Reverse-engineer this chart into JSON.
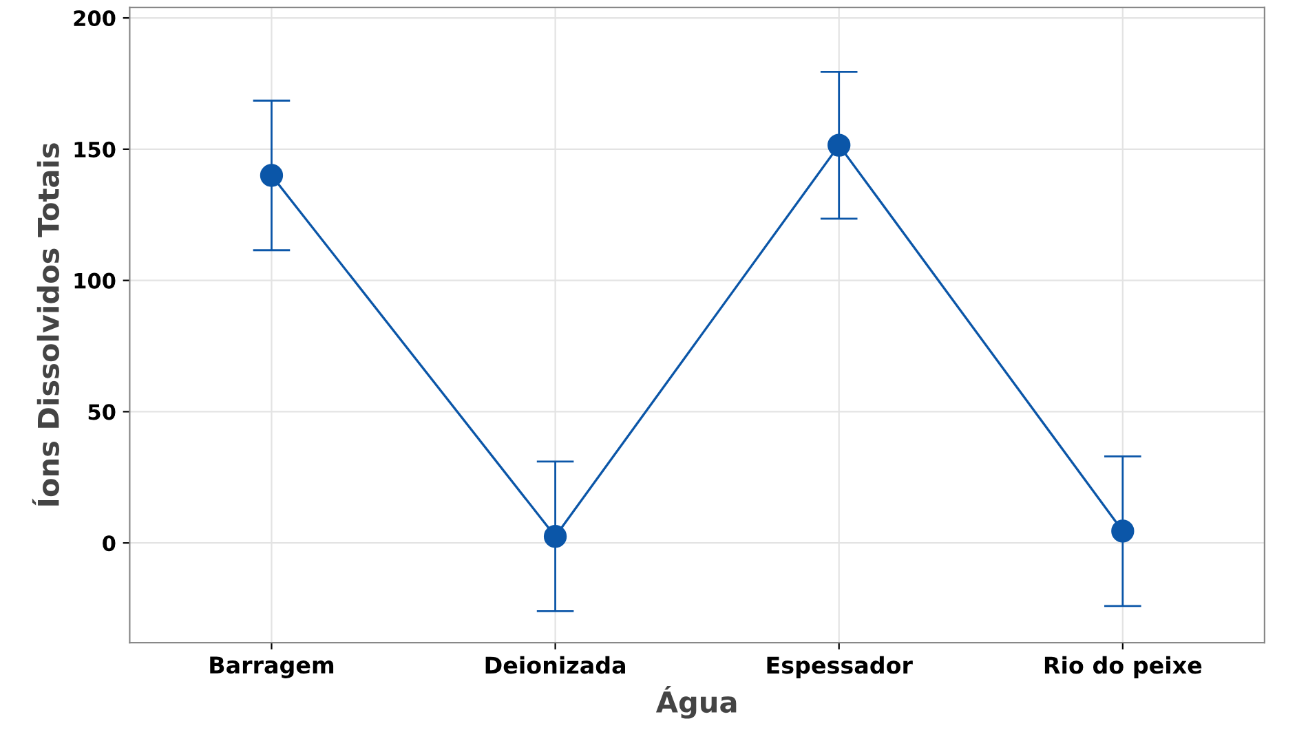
{
  "chart_data": {
    "type": "line",
    "xlabel": "Água",
    "ylabel": "Íons Dissolvidos Totais",
    "categories": [
      "Barragem",
      "Deionizada",
      "Espessador",
      "Rio do peixe"
    ],
    "series": [
      {
        "color": "#0b56a8",
        "values": [
          140,
          2.5,
          151.5,
          4.5
        ],
        "errors": [
          28.5,
          28.5,
          28,
          28.5
        ]
      }
    ],
    "ylim": [
      -38,
      204
    ],
    "yticks": [
      0,
      50,
      100,
      150,
      200
    ],
    "grid": true,
    "marker": "circle",
    "line_style": "solid",
    "legend": false
  }
}
